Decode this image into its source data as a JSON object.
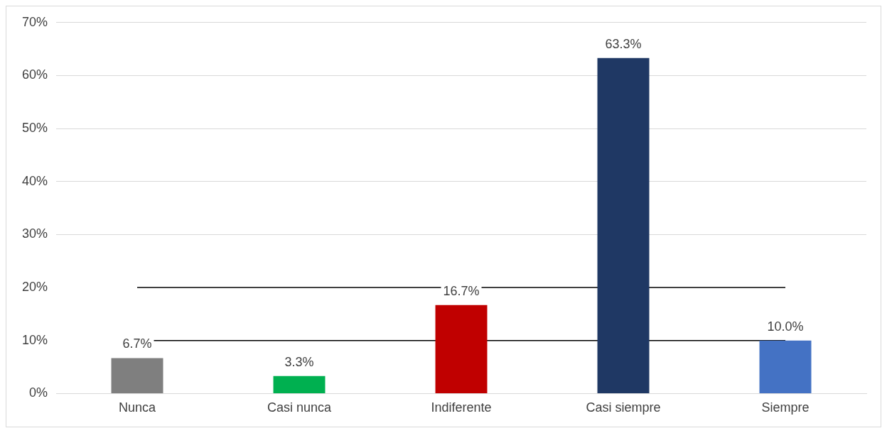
{
  "chart_data": {
    "type": "bar",
    "categories": [
      "Nunca",
      "Casi nunca",
      "Indiferente",
      "Casi siempre",
      "Siempre"
    ],
    "values": [
      6.7,
      3.3,
      16.7,
      63.3,
      10.0
    ],
    "colors": [
      "#7f7f7f",
      "#00b050",
      "#c00000",
      "#1f3864",
      "#4472c4"
    ],
    "value_labels": [
      "6.7%",
      "3.3%",
      "16.7%",
      "63.3%",
      "10.0%"
    ],
    "ylim": [
      0,
      70
    ],
    "yticks": [
      {
        "value": 0,
        "label": "0%"
      },
      {
        "value": 10,
        "label": "10%"
      },
      {
        "value": 20,
        "label": "20%"
      },
      {
        "value": 30,
        "label": "30%"
      },
      {
        "value": 40,
        "label": "40%"
      },
      {
        "value": 50,
        "label": "50%"
      },
      {
        "value": 60,
        "label": "60%"
      },
      {
        "value": 70,
        "label": "70%"
      }
    ],
    "grid": "y",
    "legend": false,
    "ref_lines": [
      {
        "axis": "y",
        "value": 20,
        "color": "#000000"
      },
      {
        "axis": "y",
        "value": 10,
        "color": "#000000"
      }
    ]
  }
}
